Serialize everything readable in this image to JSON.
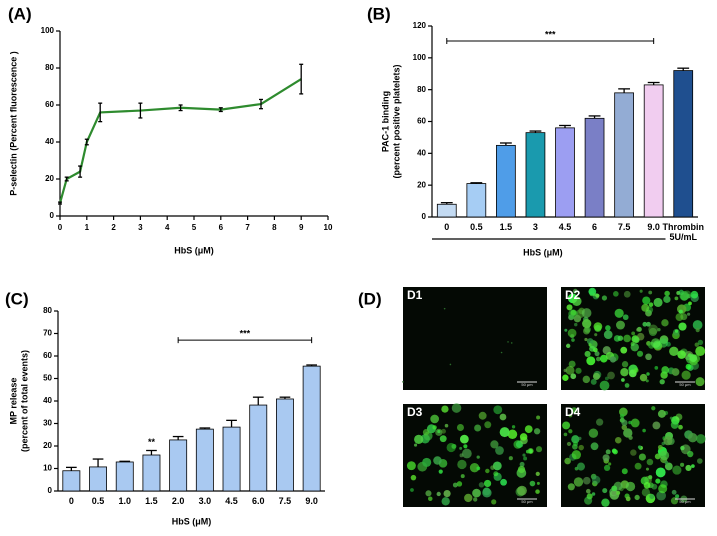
{
  "chart_data": [
    {
      "type": "line",
      "panel": "(A)",
      "ylabel": "P-selectin (Percent  fluorescence )",
      "xlabel": "HbS (μM)",
      "x": [
        0,
        0.25,
        0.75,
        1,
        1.5,
        3,
        4.5,
        6,
        7.5,
        9
      ],
      "values": [
        7,
        20,
        24,
        40,
        56,
        57,
        58.5,
        57.5,
        60.5,
        74
      ],
      "errors": [
        0.5,
        1,
        3,
        1.5,
        5,
        4,
        1.5,
        1,
        2.5,
        8
      ],
      "color": "#2e8b2e",
      "xlim": [
        0,
        10
      ],
      "xticks": [
        0,
        1,
        2,
        3,
        4,
        5,
        6,
        7,
        8,
        9,
        10
      ],
      "ylim": [
        0,
        100
      ],
      "yticks": [
        0,
        20,
        40,
        60,
        80,
        100
      ]
    },
    {
      "type": "bar",
      "panel": "(B)",
      "ylabel": [
        "PAC-1 binding",
        "(percent positive platelets)"
      ],
      "xlabel": "HbS (μM)",
      "categories": [
        "0",
        "0.5",
        "1.5",
        "3",
        "4.5",
        "6",
        "7.5",
        "9.0",
        "Thrombin 5U/mL"
      ],
      "values": [
        8,
        21,
        45,
        53,
        56,
        62,
        78,
        83,
        92
      ],
      "errors": [
        1,
        0.5,
        1.5,
        1,
        1.5,
        1.5,
        2.5,
        1.5,
        1.5
      ],
      "colors": [
        "#c3daf2",
        "#a6cdf4",
        "#4f9de8",
        "#1a9aae",
        "#9c9ef2",
        "#7a7fc6",
        "#93acd4",
        "#f1cdf0",
        "#1f4f8f"
      ],
      "ylim": [
        0,
        120
      ],
      "yticks": [
        0,
        20,
        40,
        60,
        80,
        100,
        120
      ],
      "annotations": [
        {
          "text": "***",
          "from": "0",
          "to": "9.0"
        }
      ]
    },
    {
      "type": "bar",
      "panel": "(C)",
      "ylabel": [
        "MP release",
        "(percent of total events)"
      ],
      "xlabel": "HbS (μM)",
      "categories": [
        "0",
        "0.5",
        "1.0",
        "1.5",
        "2.0",
        "3.0",
        "4.5",
        "6.0",
        "7.5",
        "9.0"
      ],
      "values": [
        9,
        10.7,
        12.9,
        16,
        22.7,
        27.5,
        28.4,
        38.2,
        40.9,
        55.5
      ],
      "errors": [
        1.5,
        3.5,
        0.3,
        2,
        1.5,
        0.5,
        3,
        3.5,
        0.8,
        0.5
      ],
      "color": "#a9c9f1",
      "ylim": [
        0,
        80
      ],
      "yticks": [
        0,
        10,
        20,
        30,
        40,
        50,
        60,
        70,
        80
      ],
      "annotations": [
        {
          "text": "**",
          "at": "1.5"
        },
        {
          "text": "***",
          "from": "2.0",
          "to": "9.0"
        }
      ]
    }
  ],
  "images": {
    "panel": "(D)",
    "items": [
      {
        "label": "D1",
        "scale": "50 μm"
      },
      {
        "label": "D2",
        "scale": "50 μm"
      },
      {
        "label": "D3",
        "scale": "50 μm"
      },
      {
        "label": "D4",
        "scale": "50 μm"
      }
    ]
  }
}
